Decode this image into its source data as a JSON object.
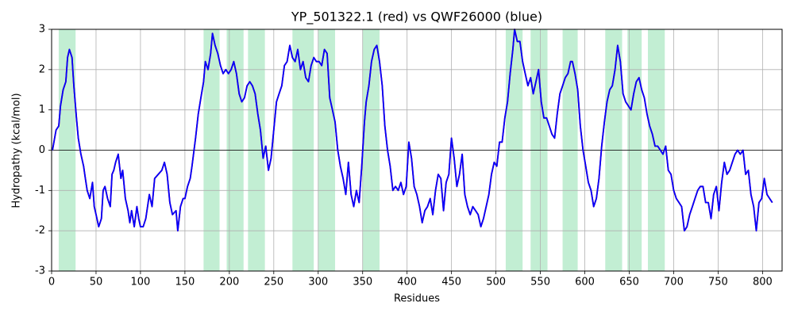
{
  "chart_data": {
    "type": "line",
    "title": "YP_501322.1 (red) vs QWF26000 (blue)",
    "xlabel": "Residues",
    "ylabel": "Hydropathy (kcal/mol)",
    "xlim": [
      0,
      822
    ],
    "ylim": [
      -3,
      3
    ],
    "xticks": [
      0,
      50,
      100,
      150,
      200,
      250,
      300,
      350,
      400,
      450,
      500,
      550,
      600,
      650,
      700,
      750,
      800
    ],
    "yticks": [
      -3,
      -2,
      -1,
      0,
      1,
      2,
      3
    ],
    "grid": true,
    "zero_line": true,
    "highlight_color": "#c2eed3",
    "highlight_spans": [
      [
        8,
        27
      ],
      [
        171,
        189
      ],
      [
        197,
        216
      ],
      [
        221,
        240
      ],
      [
        271,
        295
      ],
      [
        300,
        319
      ],
      [
        350,
        369
      ],
      [
        511,
        530
      ],
      [
        539,
        558
      ],
      [
        575,
        592
      ],
      [
        623,
        642
      ],
      [
        648,
        664
      ],
      [
        671,
        690
      ]
    ],
    "x": [
      1,
      5,
      8,
      10,
      13,
      16,
      18,
      20,
      23,
      25,
      28,
      30,
      33,
      36,
      38,
      40,
      43,
      46,
      48,
      50,
      53,
      56,
      58,
      60,
      63,
      66,
      68,
      70,
      72,
      75,
      78,
      80,
      83,
      86,
      88,
      90,
      93,
      96,
      98,
      100,
      103,
      106,
      110,
      113,
      116,
      120,
      124,
      127,
      130,
      133,
      136,
      140,
      142,
      145,
      148,
      150,
      153,
      156,
      158,
      162,
      165,
      168,
      171,
      173,
      176,
      179,
      181,
      184,
      187,
      190,
      193,
      196,
      199,
      202,
      205,
      208,
      211,
      214,
      217,
      220,
      223,
      226,
      229,
      232,
      235,
      238,
      241,
      244,
      247,
      250,
      253,
      256,
      259,
      262,
      265,
      268,
      271,
      274,
      277,
      280,
      283,
      286,
      289,
      292,
      295,
      298,
      301,
      304,
      307,
      310,
      313,
      316,
      319,
      322,
      325,
      328,
      331,
      334,
      337,
      340,
      343,
      346,
      349,
      352,
      354,
      357,
      360,
      363,
      366,
      369,
      372,
      375,
      378,
      381,
      384,
      387,
      390,
      393,
      396,
      399,
      402,
      405,
      408,
      411,
      414,
      417,
      420,
      423,
      426,
      429,
      432,
      435,
      438,
      441,
      444,
      447,
      450,
      453,
      456,
      459,
      462,
      465,
      468,
      471,
      474,
      477,
      480,
      483,
      486,
      489,
      492,
      495,
      498,
      501,
      504,
      507,
      510,
      513,
      516,
      519,
      521,
      524,
      527,
      530,
      533,
      536,
      539,
      542,
      545,
      548,
      551,
      554,
      557,
      560,
      563,
      566,
      569,
      572,
      575,
      578,
      581,
      584,
      586,
      589,
      592,
      595,
      598,
      601,
      604,
      607,
      610,
      613,
      616,
      619,
      622,
      625,
      628,
      631,
      634,
      637,
      640,
      643,
      646,
      649,
      652,
      655,
      658,
      661,
      664,
      667,
      670,
      673,
      676,
      679,
      682,
      685,
      688,
      691,
      694,
      697,
      700,
      703,
      706,
      709,
      712,
      715,
      718,
      721,
      724,
      727,
      730,
      733,
      736,
      739,
      742,
      745,
      748,
      751,
      754,
      757,
      760,
      763,
      766,
      769,
      772,
      775,
      778,
      781,
      784,
      787,
      790,
      793,
      796,
      799,
      802,
      805,
      808,
      811
    ],
    "series": [
      {
        "name": "YP_501322.1",
        "color": "#ff0000",
        "values": [
          0.0,
          0.5,
          0.6,
          1.1,
          1.5,
          1.7,
          2.3,
          2.5,
          2.3,
          1.6,
          0.8,
          0.3,
          -0.1,
          -0.4,
          -0.7,
          -1.0,
          -1.2,
          -0.8,
          -1.4,
          -1.6,
          -1.9,
          -1.7,
          -1.0,
          -0.9,
          -1.2,
          -1.4,
          -0.6,
          -0.5,
          -0.3,
          -0.1,
          -0.7,
          -0.5,
          -1.2,
          -1.5,
          -1.8,
          -1.5,
          -1.9,
          -1.4,
          -1.7,
          -1.9,
          -1.9,
          -1.7,
          -1.1,
          -1.4,
          -0.7,
          -0.6,
          -0.5,
          -0.3,
          -0.6,
          -1.3,
          -1.6,
          -1.5,
          -2.0,
          -1.4,
          -1.2,
          -1.2,
          -0.9,
          -0.7,
          -0.4,
          0.3,
          0.9,
          1.3,
          1.7,
          2.2,
          2.0,
          2.4,
          2.9,
          2.6,
          2.4,
          2.1,
          1.9,
          2.0,
          1.9,
          2.0,
          2.2,
          1.9,
          1.4,
          1.2,
          1.3,
          1.6,
          1.7,
          1.6,
          1.4,
          0.9,
          0.5,
          -0.2,
          0.1,
          -0.5,
          -0.2,
          0.5,
          1.2,
          1.4,
          1.6,
          2.1,
          2.2,
          2.6,
          2.3,
          2.2,
          2.5,
          2.0,
          2.2,
          1.8,
          1.7,
          2.1,
          2.3,
          2.2,
          2.2,
          2.1,
          2.5,
          2.4,
          1.3,
          1.0,
          0.7,
          0.0,
          -0.4,
          -0.7,
          -1.1,
          -0.3,
          -1.1,
          -1.4,
          -1.0,
          -1.3,
          -0.4,
          0.7,
          1.2,
          1.6,
          2.2,
          2.5,
          2.6,
          2.2,
          1.6,
          0.6,
          0.0,
          -0.4,
          -1.0,
          -0.9,
          -1.0,
          -0.8,
          -1.1,
          -0.9,
          0.2,
          -0.2,
          -0.9,
          -1.1,
          -1.4,
          -1.8,
          -1.5,
          -1.4,
          -1.2,
          -1.6,
          -1.0,
          -0.6,
          -0.7,
          -1.5,
          -0.8,
          -0.6,
          0.3,
          -0.2,
          -0.9,
          -0.6,
          -0.1,
          -1.1,
          -1.4,
          -1.6,
          -1.4,
          -1.5,
          -1.6,
          -1.9,
          -1.7,
          -1.4,
          -1.1,
          -0.6,
          -0.3,
          -0.4,
          0.2,
          0.2,
          0.8,
          1.2,
          1.9,
          2.5,
          3.0,
          2.7,
          2.7,
          2.2,
          1.9,
          1.6,
          1.8,
          1.4,
          1.7,
          2.0,
          1.2,
          0.8,
          0.8,
          0.6,
          0.4,
          0.3,
          0.9,
          1.4,
          1.6,
          1.8,
          1.9,
          2.2,
          2.2,
          1.9,
          1.5,
          0.6,
          0.0,
          -0.4,
          -0.8,
          -1.0,
          -1.4,
          -1.2,
          -0.7,
          0.1,
          0.7,
          1.2,
          1.5,
          1.6,
          2.0,
          2.6,
          2.2,
          1.4,
          1.2,
          1.1,
          1.0,
          1.4,
          1.7,
          1.8,
          1.5,
          1.3,
          0.9,
          0.6,
          0.4,
          0.1,
          0.1,
          0.0,
          -0.1,
          0.1,
          -0.5,
          -0.6,
          -1.0,
          -1.2,
          -1.3,
          -1.4,
          -2.0,
          -1.9,
          -1.6,
          -1.4,
          -1.2,
          -1.0,
          -0.9,
          -0.9,
          -1.3,
          -1.3,
          -1.7,
          -1.1,
          -0.9,
          -1.5,
          -0.8,
          -0.3,
          -0.6,
          -0.5,
          -0.3,
          -0.1,
          0.0,
          -0.1,
          0.0,
          -0.6,
          -0.5,
          -1.1,
          -1.4,
          -2.0,
          -1.3,
          -1.2,
          -0.7,
          -1.1,
          -1.2,
          -1.3
        ]
      },
      {
        "name": "QWF26000",
        "color": "#0000ff",
        "values": [
          0.0,
          0.5,
          0.6,
          1.1,
          1.5,
          1.7,
          2.3,
          2.5,
          2.3,
          1.6,
          0.8,
          0.3,
          -0.1,
          -0.4,
          -0.7,
          -1.0,
          -1.2,
          -0.8,
          -1.4,
          -1.6,
          -1.9,
          -1.7,
          -1.0,
          -0.9,
          -1.2,
          -1.4,
          -0.6,
          -0.5,
          -0.3,
          -0.1,
          -0.7,
          -0.5,
          -1.2,
          -1.5,
          -1.8,
          -1.5,
          -1.9,
          -1.4,
          -1.7,
          -1.9,
          -1.9,
          -1.7,
          -1.1,
          -1.4,
          -0.7,
          -0.6,
          -0.5,
          -0.3,
          -0.6,
          -1.3,
          -1.6,
          -1.5,
          -2.0,
          -1.4,
          -1.2,
          -1.2,
          -0.9,
          -0.7,
          -0.4,
          0.3,
          0.9,
          1.3,
          1.7,
          2.2,
          2.0,
          2.4,
          2.9,
          2.6,
          2.4,
          2.1,
          1.9,
          2.0,
          1.9,
          2.0,
          2.2,
          1.9,
          1.4,
          1.2,
          1.3,
          1.6,
          1.7,
          1.6,
          1.4,
          0.9,
          0.5,
          -0.2,
          0.1,
          -0.5,
          -0.2,
          0.5,
          1.2,
          1.4,
          1.6,
          2.1,
          2.2,
          2.6,
          2.3,
          2.2,
          2.5,
          2.0,
          2.2,
          1.8,
          1.7,
          2.1,
          2.3,
          2.2,
          2.2,
          2.1,
          2.5,
          2.4,
          1.3,
          1.0,
          0.7,
          0.0,
          -0.4,
          -0.7,
          -1.1,
          -0.3,
          -1.1,
          -1.4,
          -1.0,
          -1.3,
          -0.4,
          0.7,
          1.2,
          1.6,
          2.2,
          2.5,
          2.6,
          2.2,
          1.6,
          0.6,
          0.0,
          -0.4,
          -1.0,
          -0.9,
          -1.0,
          -0.8,
          -1.1,
          -0.9,
          0.2,
          -0.2,
          -0.9,
          -1.1,
          -1.4,
          -1.8,
          -1.5,
          -1.4,
          -1.2,
          -1.6,
          -1.0,
          -0.6,
          -0.7,
          -1.5,
          -0.8,
          -0.6,
          0.3,
          -0.2,
          -0.9,
          -0.6,
          -0.1,
          -1.1,
          -1.4,
          -1.6,
          -1.4,
          -1.5,
          -1.6,
          -1.9,
          -1.7,
          -1.4,
          -1.1,
          -0.6,
          -0.3,
          -0.4,
          0.2,
          0.2,
          0.8,
          1.2,
          1.9,
          2.5,
          3.0,
          2.7,
          2.7,
          2.2,
          1.9,
          1.6,
          1.8,
          1.4,
          1.7,
          2.0,
          1.2,
          0.8,
          0.8,
          0.6,
          0.4,
          0.3,
          0.9,
          1.4,
          1.6,
          1.8,
          1.9,
          2.2,
          2.2,
          1.9,
          1.5,
          0.6,
          0.0,
          -0.4,
          -0.8,
          -1.0,
          -1.4,
          -1.2,
          -0.7,
          0.1,
          0.7,
          1.2,
          1.5,
          1.6,
          2.0,
          2.6,
          2.2,
          1.4,
          1.2,
          1.1,
          1.0,
          1.4,
          1.7,
          1.8,
          1.5,
          1.3,
          0.9,
          0.6,
          0.4,
          0.1,
          0.1,
          0.0,
          -0.1,
          0.1,
          -0.5,
          -0.6,
          -1.0,
          -1.2,
          -1.3,
          -1.4,
          -2.0,
          -1.9,
          -1.6,
          -1.4,
          -1.2,
          -1.0,
          -0.9,
          -0.9,
          -1.3,
          -1.3,
          -1.7,
          -1.1,
          -0.9,
          -1.5,
          -0.8,
          -0.3,
          -0.6,
          -0.5,
          -0.3,
          -0.1,
          0.0,
          -0.1,
          0.0,
          -0.6,
          -0.5,
          -1.1,
          -1.4,
          -2.0,
          -1.3,
          -1.2,
          -0.7,
          -1.1,
          -1.2,
          -1.3
        ]
      }
    ]
  }
}
